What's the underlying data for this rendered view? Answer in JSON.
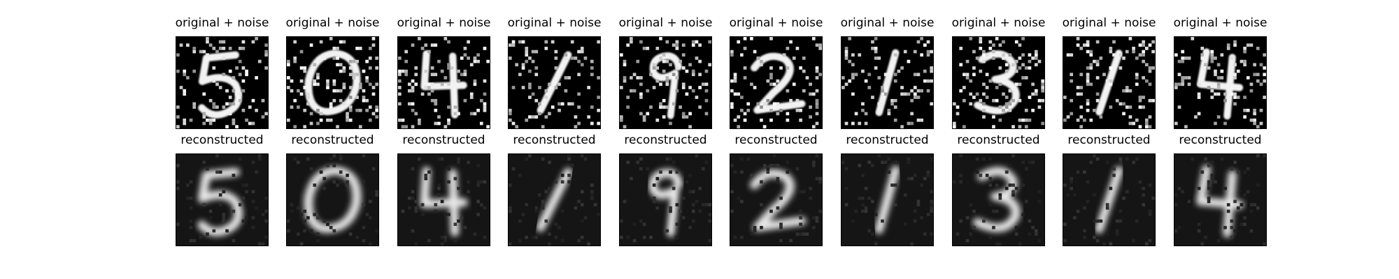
{
  "noisy_row_title": "original + noise",
  "reconstructed_row_title": "reconstructed",
  "digits": [
    "5",
    "0",
    "4",
    "1",
    "9",
    "2",
    "1",
    "3",
    "1",
    "4"
  ],
  "colors": {
    "background": "#000000",
    "ink": "#ffffff",
    "page": "#ffffff"
  }
}
